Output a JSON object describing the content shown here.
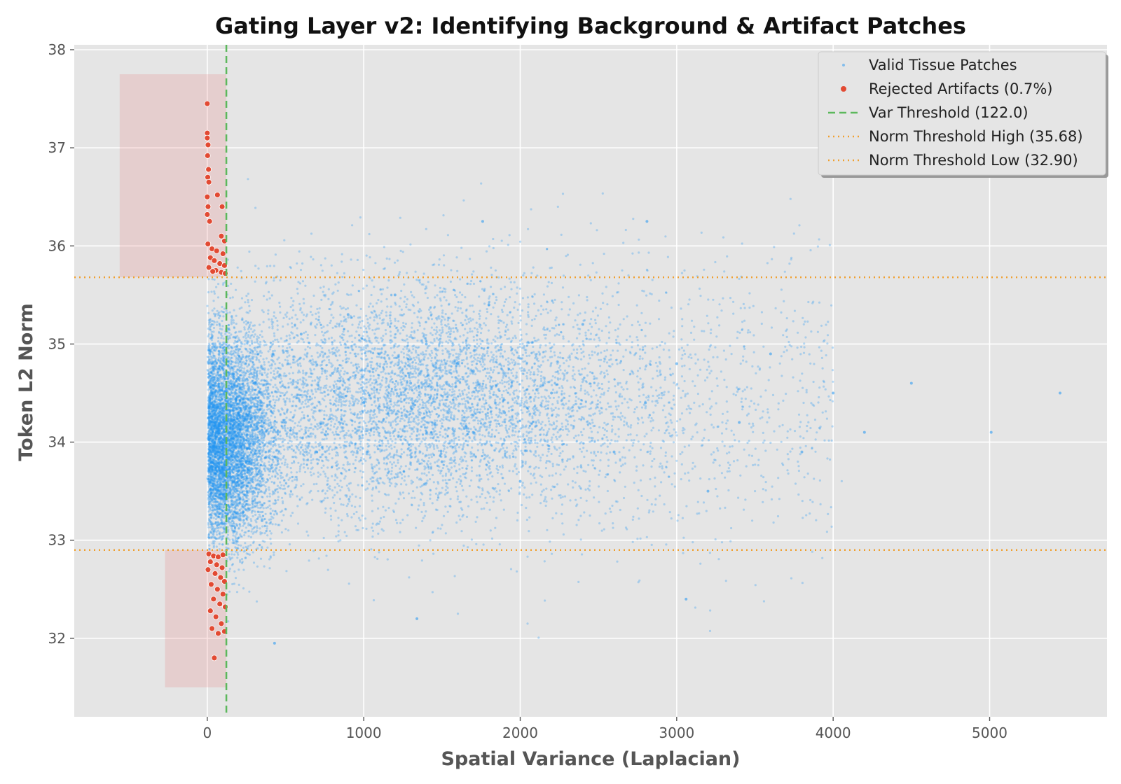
{
  "chart_data": {
    "type": "scatter",
    "title": "Gating Layer v2: Identifying Background & Artifact Patches",
    "xlabel": "Spatial Variance (Laplacian)",
    "ylabel": "Token L2 Norm",
    "xlim": [
      -850,
      5750
    ],
    "ylim": [
      31.2,
      38.05
    ],
    "x_ticks": [
      0,
      1000,
      2000,
      3000,
      4000,
      5000
    ],
    "y_ticks": [
      32,
      33,
      34,
      35,
      36,
      37,
      38
    ],
    "grid": true,
    "legend_position": "top-right",
    "background_color": "#e5e5e5",
    "series": [
      {
        "name": "Valid Tissue Patches",
        "kind": "scatter",
        "color": "#2196f3",
        "sampled_points": [
          [
            60,
            34.1
          ],
          [
            120,
            33.5
          ],
          [
            200,
            34.3
          ],
          [
            250,
            33.8
          ],
          [
            300,
            34.6
          ],
          [
            350,
            33.2
          ],
          [
            420,
            34.9
          ],
          [
            500,
            34.2
          ],
          [
            600,
            35.1
          ],
          [
            700,
            33.9
          ],
          [
            800,
            34.7
          ],
          [
            900,
            35.3
          ],
          [
            1000,
            34.4
          ],
          [
            1100,
            34.9
          ],
          [
            1200,
            35.5
          ],
          [
            1300,
            34.6
          ],
          [
            1400,
            35.0
          ],
          [
            1500,
            33.8
          ],
          [
            1600,
            34.8
          ],
          [
            1700,
            34.1
          ],
          [
            1800,
            35.4
          ],
          [
            1900,
            34.3
          ],
          [
            2000,
            33.6
          ],
          [
            2200,
            34.5
          ],
          [
            2400,
            35.2
          ],
          [
            2600,
            33.9
          ],
          [
            2800,
            34.4
          ],
          [
            3000,
            34.8
          ],
          [
            3200,
            33.5
          ],
          [
            3400,
            34.2
          ],
          [
            3600,
            34.9
          ],
          [
            3800,
            33.9
          ],
          [
            4000,
            34.5
          ],
          [
            4200,
            34.1
          ],
          [
            4500,
            34.6
          ],
          [
            5010,
            34.1
          ],
          [
            5450,
            34.5
          ],
          [
            2810,
            36.25
          ],
          [
            1760,
            36.25
          ],
          [
            1340,
            32.2
          ],
          [
            430,
            31.95
          ],
          [
            3060,
            32.4
          ]
        ]
      },
      {
        "name": "Rejected Artifacts (0.7%)",
        "kind": "scatter",
        "color": "#e24a33",
        "sampled_points": [
          [
            0,
            37.45
          ],
          [
            0,
            37.15
          ],
          [
            0,
            37.1
          ],
          [
            5,
            37.03
          ],
          [
            2,
            36.92
          ],
          [
            8,
            36.78
          ],
          [
            3,
            36.7
          ],
          [
            10,
            36.65
          ],
          [
            0,
            36.5
          ],
          [
            65,
            36.52
          ],
          [
            95,
            36.4
          ],
          [
            5,
            36.4
          ],
          [
            0,
            36.32
          ],
          [
            15,
            36.25
          ],
          [
            90,
            36.1
          ],
          [
            110,
            36.05
          ],
          [
            4,
            36.02
          ],
          [
            30,
            35.97
          ],
          [
            60,
            35.95
          ],
          [
            100,
            35.92
          ],
          [
            20,
            35.88
          ],
          [
            45,
            35.85
          ],
          [
            80,
            35.82
          ],
          [
            110,
            35.8
          ],
          [
            10,
            35.78
          ],
          [
            55,
            35.75
          ],
          [
            90,
            35.73
          ],
          [
            115,
            35.72
          ],
          [
            35,
            35.74
          ],
          [
            10,
            32.86
          ],
          [
            40,
            32.84
          ],
          [
            70,
            32.83
          ],
          [
            100,
            32.85
          ],
          [
            20,
            32.78
          ],
          [
            60,
            32.75
          ],
          [
            95,
            32.72
          ],
          [
            5,
            32.7
          ],
          [
            50,
            32.66
          ],
          [
            85,
            32.62
          ],
          [
            110,
            32.58
          ],
          [
            25,
            32.55
          ],
          [
            65,
            32.5
          ],
          [
            100,
            32.45
          ],
          [
            40,
            32.4
          ],
          [
            80,
            32.35
          ],
          [
            115,
            32.32
          ],
          [
            20,
            32.28
          ],
          [
            55,
            32.22
          ],
          [
            90,
            32.15
          ],
          [
            30,
            32.1
          ],
          [
            70,
            32.05
          ],
          [
            110,
            32.07
          ],
          [
            45,
            31.8
          ]
        ]
      },
      {
        "name": "Var Threshold (122.0)",
        "kind": "vline",
        "x": 122.0,
        "color": "#5cb85c",
        "style": "dashed"
      },
      {
        "name": "Norm Threshold High (35.68)",
        "kind": "hline",
        "y": 35.68,
        "color": "#f0a030",
        "style": "dotted"
      },
      {
        "name": "Norm Threshold Low (32.90)",
        "kind": "hline",
        "y": 32.9,
        "color": "#f0a030",
        "style": "dotted"
      }
    ],
    "shaded_regions": [
      {
        "x": [
          -560,
          122
        ],
        "y": [
          35.68,
          37.75
        ],
        "color": "#e88080"
      },
      {
        "x": [
          -270,
          122
        ],
        "y": [
          31.5,
          32.9
        ],
        "color": "#e88080"
      }
    ]
  }
}
